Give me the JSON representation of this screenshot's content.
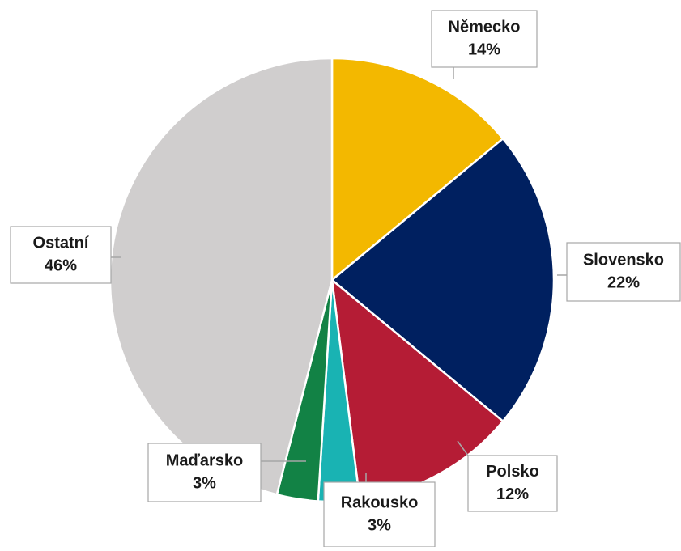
{
  "chart_data": {
    "type": "pie",
    "categories": [
      "Německo",
      "Slovensko",
      "Polsko",
      "Rakousko",
      "Maďarsko",
      "Ostatní"
    ],
    "values": [
      14,
      22,
      12,
      3,
      3,
      46
    ],
    "value_labels": [
      "14%",
      "22%",
      "12%",
      "3%",
      "3%",
      "46%"
    ],
    "colors": [
      "#f3b800",
      "#002060",
      "#b51c35",
      "#19b3b3",
      "#128245",
      "#d0cece"
    ]
  }
}
